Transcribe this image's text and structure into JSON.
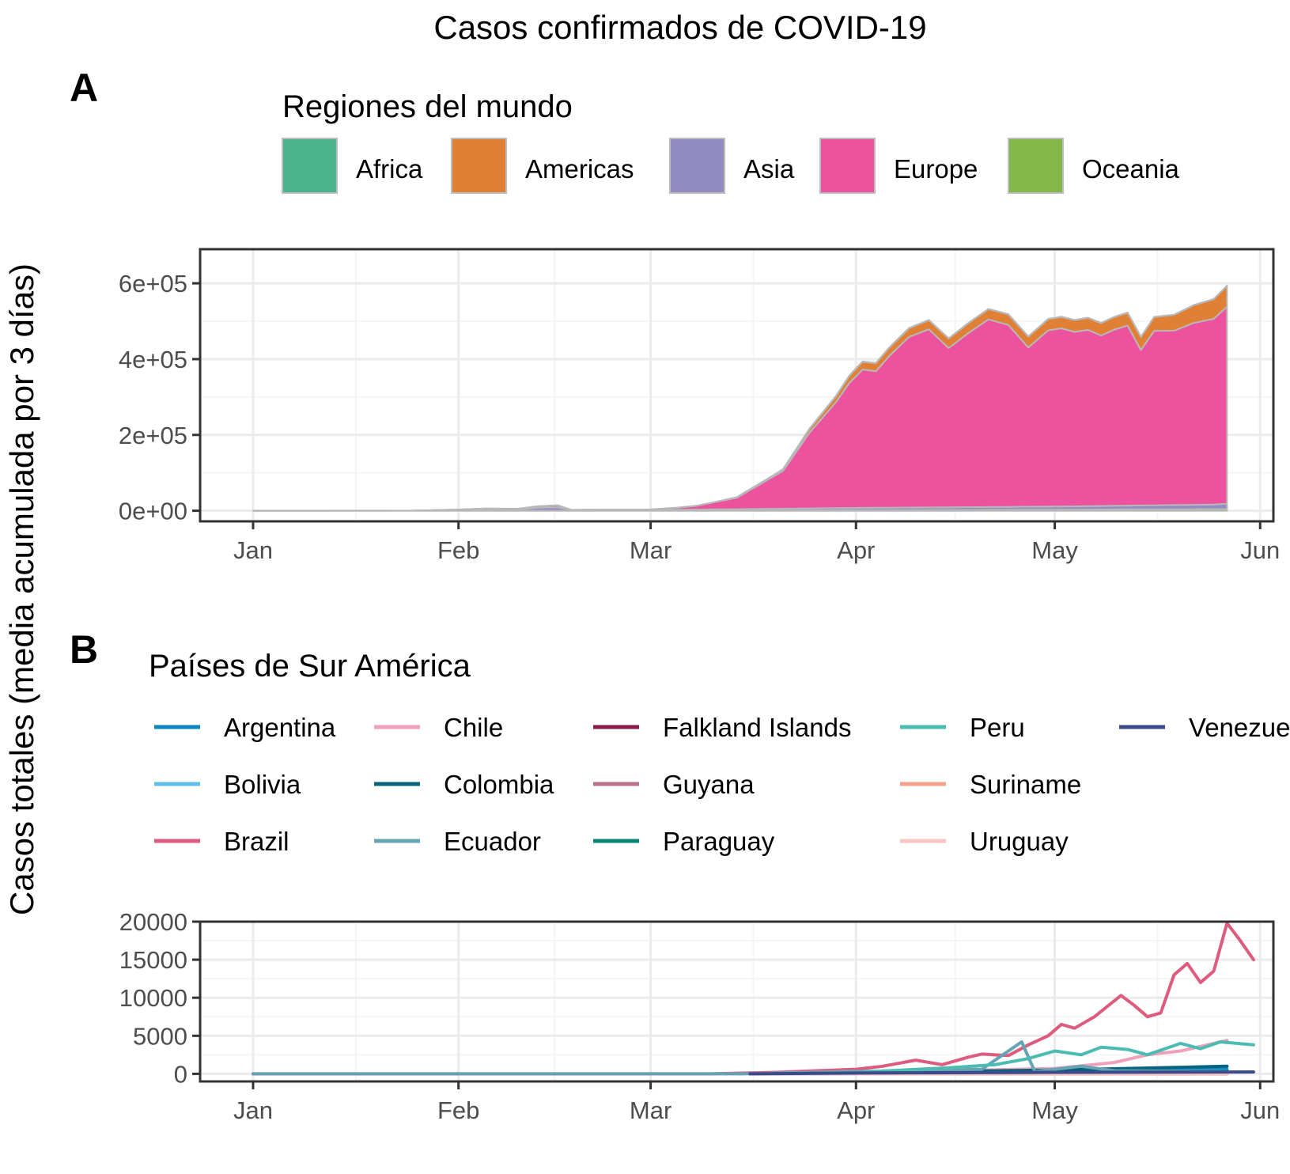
{
  "title": "Casos confirmados de COVID-19",
  "ylabel": "Casos totales (media acumulada por 3 días)",
  "colors": {
    "panel_border": "#333333",
    "grid_major": "#ebebeb",
    "grid_minor": "#f5f5f5",
    "outline": "#b8b8b8"
  },
  "chart_data": [
    {
      "tag": "A",
      "type": "area",
      "stacked": true,
      "legend_title": "Regiones del mundo",
      "legend_position": "top",
      "x_ticks": [
        "2020-01-01",
        "2020-02-01",
        "2020-03-01",
        "2020-04-01",
        "2020-05-01",
        "2020-06-01"
      ],
      "x_tick_labels": [
        "Jan",
        "Feb",
        "Mar",
        "Apr",
        "May",
        "Jun"
      ],
      "xlim": [
        "2019-12-24",
        "2020-06-03"
      ],
      "ylim": [
        -28000,
        690000
      ],
      "y_ticks": [
        0,
        200000,
        400000,
        600000
      ],
      "y_tick_labels": [
        "0e+00",
        "2e+05",
        "4e+05",
        "6e+05"
      ],
      "grid": true,
      "series": [
        {
          "name": "Africa",
          "color": "#4db38e",
          "points": [
            [
              "2020-01-01",
              0
            ],
            [
              "2020-03-15",
              300
            ],
            [
              "2020-04-01",
              1500
            ],
            [
              "2020-05-01",
              3000
            ],
            [
              "2020-05-27",
              4500
            ]
          ]
        },
        {
          "name": "Asia",
          "color": "#938cc2",
          "points": [
            [
              "2020-01-01",
              0
            ],
            [
              "2020-01-25",
              0
            ],
            [
              "2020-02-01",
              2000
            ],
            [
              "2020-02-05",
              4000
            ],
            [
              "2020-02-10",
              3000
            ],
            [
              "2020-02-13",
              8000
            ],
            [
              "2020-02-16",
              9000
            ],
            [
              "2020-02-18",
              2000
            ],
            [
              "2020-03-01",
              2000
            ],
            [
              "2020-03-15",
              4000
            ],
            [
              "2020-04-01",
              6000
            ],
            [
              "2020-05-01",
              8000
            ],
            [
              "2020-05-25",
              12000
            ],
            [
              "2020-05-27",
              14000
            ]
          ]
        },
        {
          "name": "Europe",
          "color": "#ec529d",
          "points": [
            [
              "2020-01-01",
              0
            ],
            [
              "2020-01-25",
              0
            ],
            [
              "2020-02-01",
              1000
            ],
            [
              "2020-02-10",
              2000
            ],
            [
              "2020-02-16",
              5000
            ],
            [
              "2020-02-18",
              0
            ],
            [
              "2020-03-01",
              1000
            ],
            [
              "2020-03-05",
              5000
            ],
            [
              "2020-03-08",
              10000
            ],
            [
              "2020-03-11",
              20000
            ],
            [
              "2020-03-14",
              30000
            ],
            [
              "2020-03-17",
              60000
            ],
            [
              "2020-03-21",
              100000
            ],
            [
              "2020-03-25",
              200000
            ],
            [
              "2020-03-29",
              280000
            ],
            [
              "2020-03-31",
              330000
            ],
            [
              "2020-04-02",
              365000
            ],
            [
              "2020-04-04",
              360000
            ],
            [
              "2020-04-06",
              400000
            ],
            [
              "2020-04-09",
              450000
            ],
            [
              "2020-04-12",
              470000
            ],
            [
              "2020-04-15",
              420000
            ],
            [
              "2020-04-18",
              460000
            ],
            [
              "2020-04-21",
              495000
            ],
            [
              "2020-04-24",
              480000
            ],
            [
              "2020-04-27",
              420000
            ],
            [
              "2020-04-30",
              465000
            ],
            [
              "2020-05-02",
              470000
            ],
            [
              "2020-05-04",
              460000
            ],
            [
              "2020-05-06",
              465000
            ],
            [
              "2020-05-08",
              450000
            ],
            [
              "2020-05-10",
              465000
            ],
            [
              "2020-05-12",
              475000
            ],
            [
              "2020-05-14",
              410000
            ],
            [
              "2020-05-16",
              460000
            ],
            [
              "2020-05-19",
              460000
            ],
            [
              "2020-05-22",
              480000
            ],
            [
              "2020-05-25",
              490000
            ],
            [
              "2020-05-27",
              520000
            ]
          ]
        },
        {
          "name": "Americas",
          "color": "#e08035",
          "points": [
            [
              "2020-01-01",
              0
            ],
            [
              "2020-03-10",
              0
            ],
            [
              "2020-03-20",
              3000
            ],
            [
              "2020-04-01",
              20000
            ],
            [
              "2020-04-15",
              25000
            ],
            [
              "2020-05-01",
              30000
            ],
            [
              "2020-05-15",
              35000
            ],
            [
              "2020-05-27",
              55000
            ]
          ]
        },
        {
          "name": "Oceania",
          "color": "#85b84a",
          "points": [
            [
              "2020-01-01",
              0
            ],
            [
              "2020-03-20",
              300
            ],
            [
              "2020-04-01",
              800
            ],
            [
              "2020-05-27",
              500
            ]
          ]
        }
      ]
    },
    {
      "tag": "B",
      "type": "line",
      "legend_title": "Países de Sur América",
      "legend_position": "top",
      "legend_label_clipped": "Venezuela",
      "x_ticks": [
        "2020-01-01",
        "2020-02-01",
        "2020-03-01",
        "2020-04-01",
        "2020-05-01",
        "2020-06-01"
      ],
      "x_tick_labels": [
        "Jan",
        "Feb",
        "Mar",
        "Apr",
        "May",
        "Jun"
      ],
      "xlim": [
        "2019-12-24",
        "2020-06-03"
      ],
      "ylim": [
        -1000,
        20000
      ],
      "y_ticks": [
        0,
        5000,
        10000,
        15000,
        20000
      ],
      "y_tick_labels": [
        "0",
        "5000",
        "10000",
        "15000",
        "20000"
      ],
      "grid": true,
      "series": [
        {
          "name": "Argentina",
          "color": "#0b86c3",
          "points": [
            [
              "2020-03-16",
              0
            ],
            [
              "2020-04-01",
              100
            ],
            [
              "2020-05-01",
              200
            ],
            [
              "2020-05-27",
              600
            ]
          ]
        },
        {
          "name": "Bolivia",
          "color": "#5ec0e8",
          "points": [
            [
              "2020-03-16",
              0
            ],
            [
              "2020-04-15",
              50
            ],
            [
              "2020-05-27",
              300
            ]
          ]
        },
        {
          "name": "Brazil",
          "color": "#dd5b7d",
          "points": [
            [
              "2020-01-01",
              0
            ],
            [
              "2020-03-10",
              0
            ],
            [
              "2020-03-20",
              200
            ],
            [
              "2020-04-01",
              600
            ],
            [
              "2020-04-05",
              1000
            ],
            [
              "2020-04-10",
              1800
            ],
            [
              "2020-04-14",
              1200
            ],
            [
              "2020-04-18",
              2200
            ],
            [
              "2020-04-20",
              2600
            ],
            [
              "2020-04-24",
              2400
            ],
            [
              "2020-04-27",
              3800
            ],
            [
              "2020-04-30",
              5000
            ],
            [
              "2020-05-02",
              6500
            ],
            [
              "2020-05-04",
              6000
            ],
            [
              "2020-05-07",
              7500
            ],
            [
              "2020-05-11",
              10300
            ],
            [
              "2020-05-13",
              9000
            ],
            [
              "2020-05-15",
              7500
            ],
            [
              "2020-05-17",
              8000
            ],
            [
              "2020-05-19",
              13000
            ],
            [
              "2020-05-21",
              14500
            ],
            [
              "2020-05-23",
              12000
            ],
            [
              "2020-05-25",
              13500
            ],
            [
              "2020-05-27",
              19800
            ],
            [
              "2020-05-29",
              17500
            ],
            [
              "2020-05-31",
              15000
            ]
          ]
        },
        {
          "name": "Chile",
          "color": "#f0a0b8",
          "points": [
            [
              "2020-03-16",
              0
            ],
            [
              "2020-04-01",
              300
            ],
            [
              "2020-04-15",
              400
            ],
            [
              "2020-05-01",
              700
            ],
            [
              "2020-05-10",
              1500
            ],
            [
              "2020-05-15",
              2500
            ],
            [
              "2020-05-20",
              3000
            ],
            [
              "2020-05-27",
              4400
            ]
          ]
        },
        {
          "name": "Colombia",
          "color": "#08637d",
          "points": [
            [
              "2020-03-16",
              0
            ],
            [
              "2020-04-01",
              200
            ],
            [
              "2020-05-01",
              500
            ],
            [
              "2020-05-27",
              1000
            ]
          ]
        },
        {
          "name": "Ecuador",
          "color": "#65a4b4",
          "points": [
            [
              "2020-01-01",
              0
            ],
            [
              "2020-03-15",
              0
            ],
            [
              "2020-04-01",
              300
            ],
            [
              "2020-04-20",
              600
            ],
            [
              "2020-04-26",
              4200
            ],
            [
              "2020-04-28",
              300
            ],
            [
              "2020-05-05",
              1000
            ],
            [
              "2020-05-10",
              400
            ],
            [
              "2020-05-27",
              300
            ]
          ]
        },
        {
          "name": "Falkland Islands",
          "color": "#8b1b4a",
          "points": [
            [
              "2020-04-01",
              0
            ],
            [
              "2020-05-27",
              0
            ]
          ]
        },
        {
          "name": "Guyana",
          "color": "#b9708a",
          "points": [
            [
              "2020-04-01",
              0
            ],
            [
              "2020-05-27",
              10
            ]
          ]
        },
        {
          "name": "Paraguay",
          "color": "#0a8478",
          "points": [
            [
              "2020-03-16",
              0
            ],
            [
              "2020-05-27",
              30
            ]
          ]
        },
        {
          "name": "Peru",
          "color": "#4cbcb2",
          "points": [
            [
              "2020-03-16",
              0
            ],
            [
              "2020-04-01",
              200
            ],
            [
              "2020-04-15",
              800
            ],
            [
              "2020-04-22",
              1200
            ],
            [
              "2020-04-27",
              2000
            ],
            [
              "2020-05-01",
              3000
            ],
            [
              "2020-05-05",
              2500
            ],
            [
              "2020-05-08",
              3500
            ],
            [
              "2020-05-12",
              3200
            ],
            [
              "2020-05-15",
              2500
            ],
            [
              "2020-05-20",
              4000
            ],
            [
              "2020-05-23",
              3300
            ],
            [
              "2020-05-26",
              4200
            ],
            [
              "2020-05-31",
              3800
            ]
          ]
        },
        {
          "name": "Suriname",
          "color": "#f6a08e",
          "points": [
            [
              "2020-04-01",
              0
            ],
            [
              "2020-05-27",
              5
            ]
          ]
        },
        {
          "name": "Uruguay",
          "color": "#f9c6c6",
          "points": [
            [
              "2020-03-16",
              0
            ],
            [
              "2020-05-27",
              20
            ]
          ]
        },
        {
          "name": "Venezuela",
          "color": "#3b4a8a",
          "points": [
            [
              "2020-03-16",
              0
            ],
            [
              "2020-04-01",
              100
            ],
            [
              "2020-05-01",
              200
            ],
            [
              "2020-05-31",
              250
            ]
          ]
        }
      ]
    }
  ]
}
